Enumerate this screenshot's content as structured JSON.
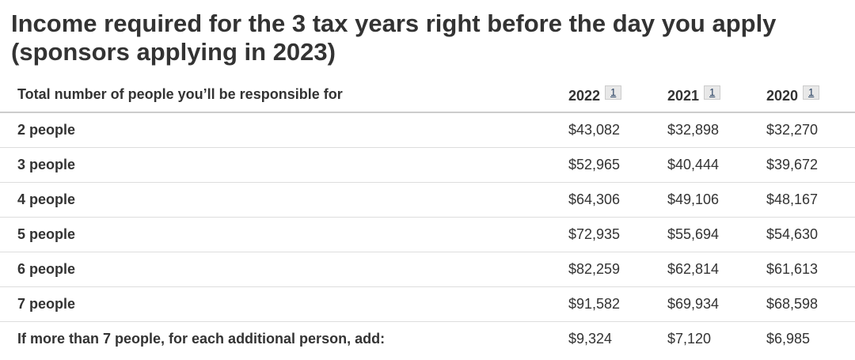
{
  "title": "Income required for the 3 tax years right before the day you apply (sponsors applying in 2023)",
  "table": {
    "header": [
      "Total number of people you’ll be responsible for",
      {
        "label": "2022",
        "note": "1"
      },
      {
        "label": "2021",
        "note": "1"
      },
      {
        "label": "2020",
        "note": "1"
      }
    ],
    "rows": [
      [
        "2 people",
        "$43,082",
        "$32,898",
        "$32,270"
      ],
      [
        "3 people",
        "$52,965",
        "$40,444",
        "$39,672"
      ],
      [
        "4 people",
        "$64,306",
        "$49,106",
        "$48,167"
      ],
      [
        "5 people",
        "$72,935",
        "$55,694",
        "$54,630"
      ],
      [
        "6 people",
        "$82,259",
        "$62,814",
        "$61,613"
      ],
      [
        "7 people",
        "$91,582",
        "$69,934",
        "$68,598"
      ],
      [
        "If more than 7 people, for each additional person, add:",
        "$9,324",
        "$7,120",
        "$6,985"
      ]
    ]
  }
}
